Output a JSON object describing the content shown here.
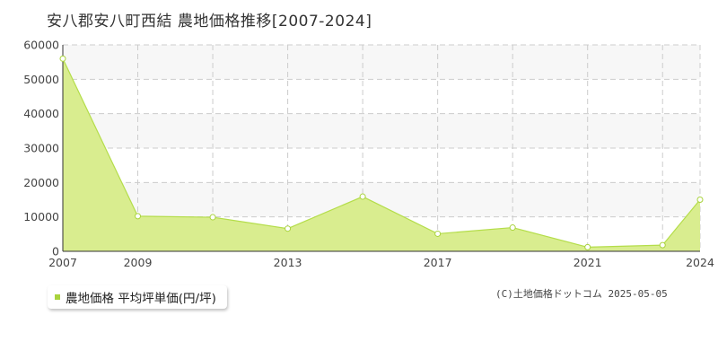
{
  "title": "安八郡安八町西結 農地価格推移[2007-2024]",
  "legend": {
    "label": "農地価格 平均坪単価(円/坪)"
  },
  "copyright": "(C)土地価格ドットコム 2025-05-05",
  "colors": {
    "fill": "#d9ed8f",
    "line": "#b4dd4a",
    "marker_fill": "#ffffff",
    "marker_stroke": "#a9d33d",
    "band": "#f7f7f7",
    "grid": "#cccccc",
    "legend_marker": "#a9d33d"
  },
  "chart_data": {
    "type": "area",
    "title": "安八郡安八町西結 農地価格推移[2007-2024]",
    "x": [
      2007,
      2009,
      2011,
      2013,
      2015,
      2017,
      2019,
      2021,
      2023,
      2024
    ],
    "series": [
      {
        "name": "農地価格 平均坪単価(円/坪)",
        "values": [
          56000,
          10200,
          9900,
          6600,
          15900,
          5100,
          6900,
          1200,
          1800,
          15000
        ]
      }
    ],
    "xlim": [
      2007,
      2024
    ],
    "ylim": [
      0,
      60000
    ],
    "y_ticks": [
      0,
      10000,
      20000,
      30000,
      40000,
      50000,
      60000
    ],
    "y_tick_labels": [
      "0",
      "10000",
      "20000",
      "30000",
      "40000",
      "50000",
      "60000"
    ],
    "x_ticks": [
      2007,
      2009,
      2013,
      2017,
      2021,
      2024
    ],
    "x_tick_labels": [
      "2007",
      "2009",
      "2013",
      "2017",
      "2021",
      "2024"
    ],
    "x_grid": [
      2007,
      2009,
      2011,
      2013,
      2015,
      2017,
      2019,
      2021,
      2023,
      2024
    ],
    "grid": true,
    "legend_position": "bottom-left"
  }
}
